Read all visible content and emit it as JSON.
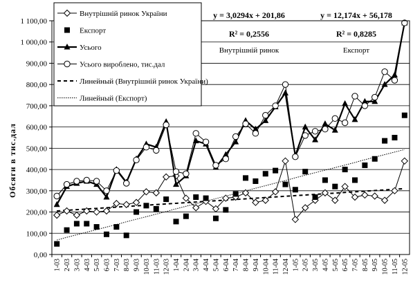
{
  "chart_data": {
    "type": "line",
    "title": "",
    "xlabel": "",
    "ylabel": "Обсяги в тис.дал",
    "ylim": [
      0,
      1100
    ],
    "yticks": [
      "0,00",
      "100,00",
      "200,00",
      "300,00",
      "400,00",
      "500,00",
      "600,00",
      "700,00",
      "800,00",
      "900,00",
      "1 000,00",
      "1 100,00"
    ],
    "grid": "horizontal",
    "legend_position": "top-left",
    "categories": [
      "1-03",
      "2-03",
      "3-03",
      "4-03",
      "5-03",
      "6-03",
      "7-03",
      "8-03",
      "9-03",
      "10-03",
      "11-03",
      "12-03",
      "1-04",
      "2-04",
      "3-04",
      "4-04",
      "5-04",
      "6-04",
      "7-04",
      "8-04",
      "9-04",
      "10-04",
      "11-04",
      "12-04",
      "1-05",
      "2-05",
      "3-05",
      "4-05",
      "5-05",
      "6-05",
      "7-05",
      "8-05",
      "9-05",
      "10-05",
      "11-05",
      "12-05"
    ],
    "series": [
      {
        "name": "Внутрішній ринок України",
        "marker": "diamond-open",
        "line": "solid-thin",
        "values": [
          185,
          205,
          185,
          205,
          200,
          205,
          240,
          235,
          245,
          295,
          290,
          365,
          370,
          265,
          220,
          250,
          215,
          265,
          270,
          290,
          245,
          255,
          295,
          440,
          165,
          220,
          255,
          290,
          255,
          320,
          270,
          280,
          275,
          255,
          300,
          440
        ]
      },
      {
        "name": "Експорт",
        "marker": "square-filled",
        "line": "none",
        "values": [
          50,
          115,
          145,
          145,
          130,
          95,
          130,
          90,
          200,
          230,
          215,
          260,
          155,
          180,
          270,
          265,
          170,
          210,
          285,
          360,
          345,
          380,
          395,
          330,
          305,
          390,
          270,
          350,
          320,
          400,
          350,
          420,
          450,
          535,
          550,
          655
        ]
      },
      {
        "name": "Усього",
        "marker": "triangle-filled",
        "line": "solid-thick",
        "values": [
          235,
          320,
          335,
          345,
          330,
          270,
          400,
          340,
          450,
          520,
          505,
          625,
          330,
          370,
          535,
          520,
          410,
          470,
          530,
          630,
          590,
          630,
          695,
          760,
          465,
          600,
          540,
          615,
          585,
          710,
          635,
          720,
          720,
          800,
          845,
          1090
        ]
      },
      {
        "name": "Усього вироблено, тис.дал",
        "marker": "circle-open",
        "line": "solid-thin",
        "values": [
          275,
          330,
          345,
          350,
          345,
          300,
          395,
          335,
          445,
          505,
          490,
          610,
          390,
          380,
          570,
          530,
          420,
          450,
          555,
          615,
          570,
          655,
          700,
          800,
          460,
          560,
          580,
          590,
          640,
          620,
          745,
          700,
          740,
          860,
          820,
          1090
        ]
      },
      {
        "name": "Линейный (Внутрішній ринок України)",
        "marker": "none",
        "line": "dashed",
        "values": [
          205,
          208,
          211,
          214,
          217,
          220,
          223,
          226,
          229,
          232,
          235,
          238,
          241,
          244,
          247,
          250,
          253,
          256,
          259,
          262,
          265,
          268,
          271,
          274,
          277,
          280,
          283,
          286,
          289,
          292,
          295,
          298,
          301,
          304,
          307,
          310
        ]
      },
      {
        "name": "Линейный (Експорт)",
        "marker": "none",
        "line": "dotted",
        "values": [
          68,
          81,
          93,
          105,
          117,
          129,
          141,
          154,
          166,
          178,
          190,
          202,
          215,
          227,
          239,
          251,
          263,
          275,
          287,
          300,
          312,
          324,
          336,
          348,
          361,
          373,
          385,
          397,
          409,
          421,
          433,
          446,
          458,
          470,
          482,
          494
        ]
      }
    ],
    "annotations": [
      {
        "equation": "y = 3,0294x + 201,86",
        "r2": "R² = 0,2556",
        "name": "Внутрішній ринок"
      },
      {
        "equation": "y = 12,174x + 56,178",
        "r2": "R² = 0,8285",
        "name": "Експорт"
      }
    ]
  }
}
